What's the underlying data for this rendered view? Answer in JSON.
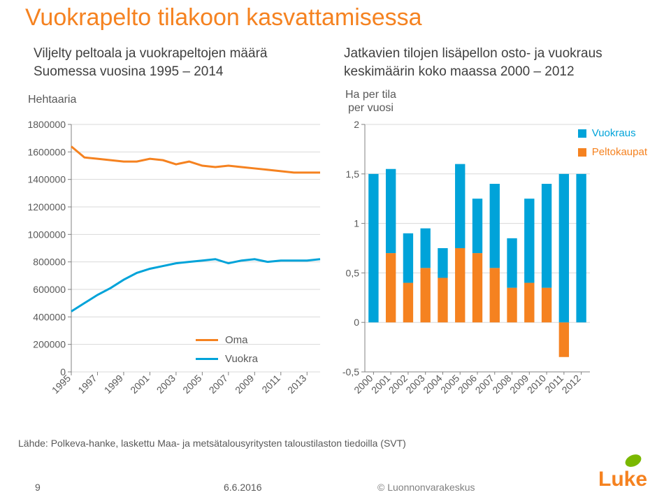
{
  "title": "Vuokrapelto tilakoon kasvattamisessa",
  "subtitleLeft": "Viljelty peltoala ja vuokrapeltojen määrä\nSuomessa vuosina 1995 – 2014",
  "subtitleRight": "Jatkavien tilojen lisäpellon osto- ja vuokraus\nkeskimäärin koko maassa 2000 – 2012",
  "leftChart": {
    "yTitle": "Hehtaaria",
    "yMin": 0,
    "yMax": 1800000,
    "yStep": 200000,
    "yLabels": [
      "0",
      "200000",
      "400000",
      "600000",
      "800000",
      "1000000",
      "1200000",
      "1400000",
      "1600000",
      "1800000"
    ],
    "years": [
      1995,
      1996,
      1997,
      1998,
      1999,
      2000,
      2001,
      2002,
      2003,
      2004,
      2005,
      2006,
      2007,
      2008,
      2009,
      2010,
      2011,
      2012,
      2013,
      2014
    ],
    "xLabels": [
      "1995",
      "1997",
      "1999",
      "2001",
      "2003",
      "2005",
      "2007",
      "2009",
      "2011",
      "2013"
    ],
    "series": {
      "Oma": [
        1640000,
        1560000,
        1550000,
        1540000,
        1530000,
        1530000,
        1550000,
        1540000,
        1510000,
        1530000,
        1500000,
        1490000,
        1500000,
        1490000,
        1480000,
        1470000,
        1460000,
        1450000,
        1450000,
        1450000
      ],
      "Vuokra": [
        440000,
        500000,
        560000,
        610000,
        670000,
        720000,
        750000,
        770000,
        790000,
        800000,
        810000,
        820000,
        790000,
        810000,
        820000,
        800000,
        810000,
        810000,
        810000,
        820000
      ]
    },
    "colors": {
      "Oma": "#f58220",
      "Vuokra": "#00a3d9"
    },
    "gridColor": "#d9d9d9",
    "tickColor": "#808080",
    "labelColor": "#595959",
    "lineWidth": 3,
    "labelFont": 14
  },
  "rightChart": {
    "yTitle": "Ha per tila\nper vuosi",
    "yMin": -0.5,
    "yMax": 2,
    "yStep": 0.5,
    "yLabels": [
      "-0,5",
      "0",
      "0,5",
      "1",
      "1,5",
      "2"
    ],
    "years": [
      2000,
      2001,
      2002,
      2003,
      2004,
      2005,
      2006,
      2007,
      2008,
      2009,
      2010,
      2011,
      2012
    ],
    "stack": {
      "Vuokraus": [
        1.5,
        0.85,
        0.5,
        0.4,
        0.3,
        0.85,
        0.55,
        0.85,
        0.5,
        0.85,
        1.05,
        1.5,
        1.5
      ],
      "Peltokaupat": [
        0.0,
        0.7,
        0.4,
        0.55,
        0.45,
        0.75,
        0.7,
        0.55,
        0.35,
        0.4,
        0.35,
        -0.35,
        0.0
      ]
    },
    "colors": {
      "Vuokraus": "#00a3d9",
      "Peltokaupat": "#f58220"
    },
    "gridColor": "#d9d9d9",
    "tickColor": "#808080",
    "labelColor": "#595959",
    "barWidth": 0.58,
    "labelFont": 14
  },
  "legendLeft": [
    {
      "label": "Oma",
      "color": "#f58220"
    },
    {
      "label": "Vuokra",
      "color": "#00a3d9"
    }
  ],
  "legendRight": [
    {
      "label": "Vuokraus",
      "color": "#00a3d9"
    },
    {
      "label": "Peltokaupat",
      "color": "#f58220"
    }
  ],
  "source": "Lähde: Polkeva-hanke, laskettu Maa- ja metsätalousyritysten taloustilaston tiedoilla (SVT)",
  "slideNum": "9",
  "date": "6.6.2016",
  "copyright": "© Luonnonvarakeskus",
  "logo": {
    "text": "Luke",
    "color": "#f58220",
    "leaf": "#7ab800"
  }
}
